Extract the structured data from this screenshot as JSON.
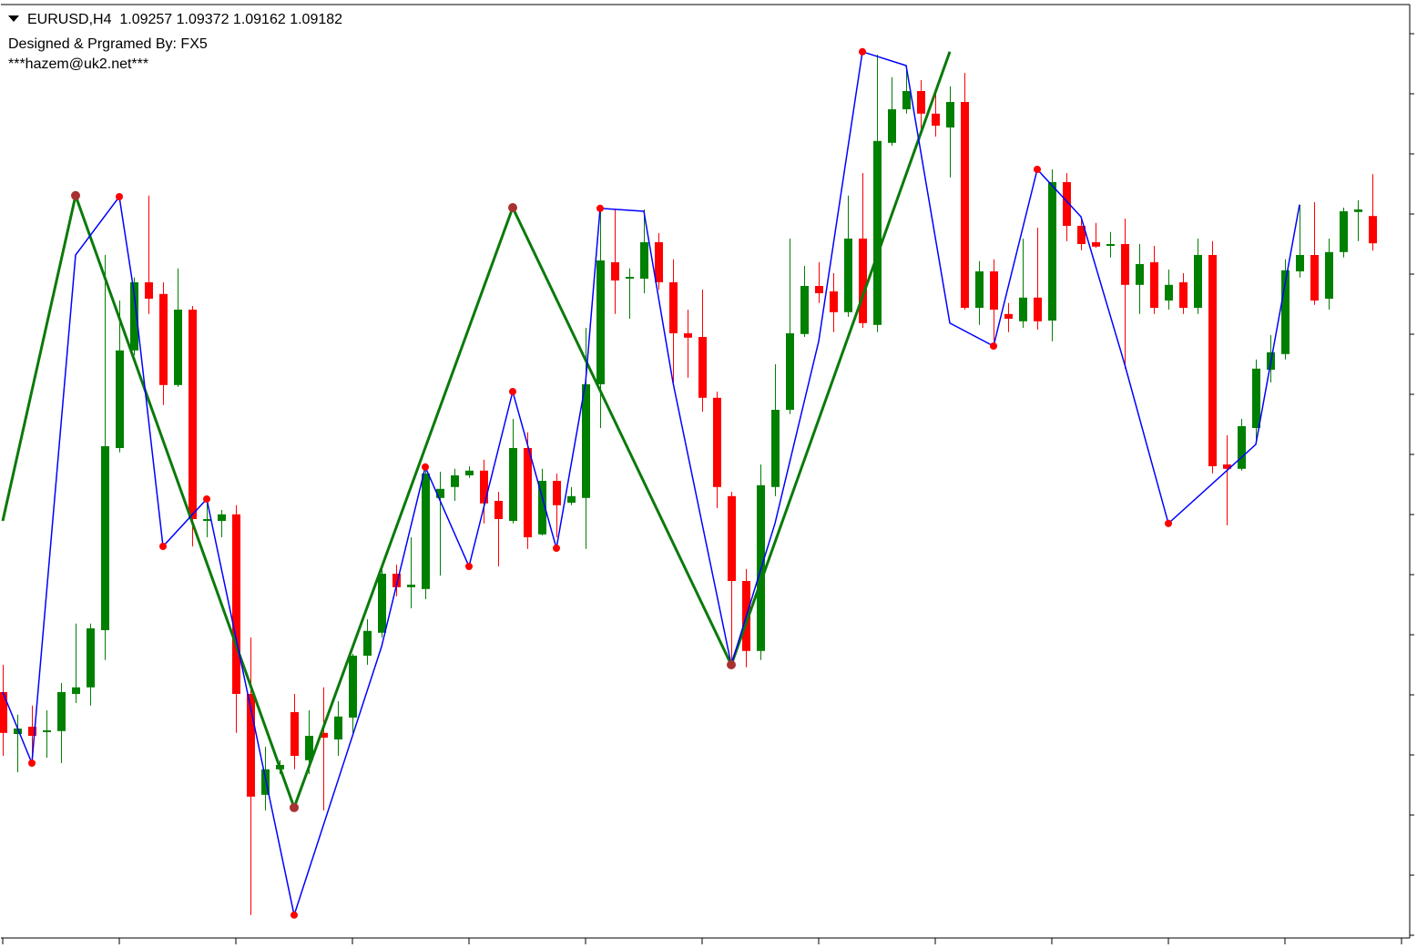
{
  "chart_data": {
    "type": "candlestick",
    "title": "EURUSD,H4  1.09257 1.09372 1.09162 1.09182",
    "annotations": [
      "Designed & Prgramed By: FX5",
      "***hazem@uk2.net***"
    ],
    "up_color": "#008000",
    "down_color": "#ff0000",
    "ylim": [
      1.07275,
      1.0985
    ],
    "open": [
      1.0795,
      1.07835,
      1.07855,
      1.0784,
      1.07843,
      1.07945,
      1.07963,
      1.0812,
      1.0862,
      1.08888,
      1.09075,
      1.09043,
      1.08793,
      1.09,
      1.0842,
      1.0842,
      1.08438,
      1.07945,
      1.07668,
      1.07738,
      1.07895,
      1.07763,
      1.07838,
      1.0782,
      1.0788,
      1.0805,
      1.08113,
      1.08275,
      1.08238,
      1.08233,
      1.08483,
      1.08513,
      1.08545,
      1.08558,
      1.08475,
      1.0842,
      1.0862,
      1.08383,
      1.0853,
      1.0847,
      1.08483,
      1.08795,
      1.0913,
      1.09085,
      1.09085,
      1.09185,
      1.09075,
      1.08935,
      1.08925,
      1.08758,
      1.08488,
      1.08255,
      1.08063,
      1.08513,
      1.08725,
      1.08933,
      1.09065,
      1.0905,
      1.08993,
      1.09195,
      1.08958,
      1.09458,
      1.0955,
      1.096,
      1.09538,
      1.095,
      1.0957,
      1.09005,
      1.09105,
      1.08988,
      1.08968,
      1.09033,
      1.0897,
      1.0935,
      1.0923,
      1.09185,
      1.09175,
      1.0918,
      1.09068,
      1.0913,
      1.09025,
      1.09075,
      1.09005,
      1.0915,
      1.08575,
      1.08563,
      1.08675,
      1.08835,
      1.08878,
      1.09105,
      1.0915,
      1.0903,
      1.09158,
      1.09268,
      1.09257
    ],
    "high": [
      1.08025,
      1.07888,
      1.07913,
      1.079,
      1.07975,
      1.08138,
      1.08138,
      1.0915,
      1.09025,
      1.09088,
      1.09313,
      1.09075,
      1.09113,
      1.0901,
      1.0848,
      1.0845,
      1.08463,
      1.081,
      1.078,
      1.07763,
      1.07945,
      1.079,
      1.07963,
      1.07925,
      1.08055,
      1.0815,
      1.08288,
      1.083,
      1.08375,
      1.08575,
      1.08555,
      1.08563,
      1.0857,
      1.08588,
      1.085,
      1.087,
      1.08663,
      1.08563,
      1.0855,
      1.08513,
      1.0895,
      1.09275,
      1.09275,
      1.09113,
      1.09275,
      1.0921,
      1.09138,
      1.09,
      1.09055,
      1.08775,
      1.085,
      1.08288,
      1.08575,
      1.0885,
      1.09195,
      1.0912,
      1.0913,
      1.091,
      1.09313,
      1.09375,
      1.097,
      1.09638,
      1.0967,
      1.0963,
      1.096,
      1.09613,
      1.0965,
      1.09133,
      1.09138,
      1.09018,
      1.09195,
      1.09225,
      1.09385,
      1.09375,
      1.09255,
      1.09238,
      1.09213,
      1.0925,
      1.0918,
      1.09175,
      1.0911,
      1.091,
      1.09195,
      1.09188,
      1.08655,
      1.087,
      1.08863,
      1.0893,
      1.09138,
      1.09288,
      1.09295,
      1.09195,
      1.0928,
      1.093,
      1.09372
    ],
    "low": [
      1.07775,
      1.0773,
      1.07755,
      1.0777,
      1.07755,
      1.0792,
      1.07913,
      1.08038,
      1.08608,
      1.08875,
      1.08988,
      1.08738,
      1.08788,
      1.0835,
      1.08375,
      1.08375,
      1.07838,
      1.07338,
      1.07625,
      1.07725,
      1.07738,
      1.07725,
      1.07625,
      1.07775,
      1.07838,
      1.08025,
      1.081,
      1.08213,
      1.0818,
      1.08205,
      1.0827,
      1.08475,
      1.08538,
      1.08413,
      1.08295,
      1.08413,
      1.08343,
      1.0838,
      1.08375,
      1.08463,
      1.08343,
      1.08675,
      1.08988,
      1.08975,
      1.09045,
      1.09055,
      1.088,
      1.08813,
      1.0872,
      1.08455,
      1.08018,
      1.08018,
      1.08038,
      1.08488,
      1.08713,
      1.08925,
      1.09018,
      1.08938,
      1.0898,
      1.0895,
      1.08938,
      1.0945,
      1.09538,
      1.0948,
      1.09475,
      1.09363,
      1.09,
      1.08958,
      1.08913,
      1.08938,
      1.0895,
      1.08945,
      1.08913,
      1.09188,
      1.09163,
      1.0917,
      1.09143,
      1.08838,
      1.08988,
      1.08988,
      1.09,
      1.08988,
      1.08988,
      1.0855,
      1.08408,
      1.08558,
      1.08638,
      1.088,
      1.08863,
      1.09088,
      1.09013,
      1.09,
      1.09143,
      1.09188,
      1.09162
    ],
    "close": [
      1.07838,
      1.0785,
      1.0783,
      1.07845,
      1.0795,
      1.07963,
      1.08125,
      1.08625,
      1.08888,
      1.09075,
      1.0903,
      1.08793,
      1.09,
      1.08425,
      1.08425,
      1.08438,
      1.07945,
      1.07663,
      1.07738,
      1.0775,
      1.07775,
      1.0783,
      1.07825,
      1.07883,
      1.0805,
      1.08118,
      1.08275,
      1.08238,
      1.08245,
      1.0855,
      1.08508,
      1.08545,
      1.08558,
      1.08468,
      1.08425,
      1.0862,
      1.08375,
      1.0853,
      1.08463,
      1.08488,
      1.08795,
      1.09135,
      1.0908,
      1.0909,
      1.09185,
      1.09075,
      1.08935,
      1.08923,
      1.08758,
      1.08513,
      1.08255,
      1.08063,
      1.08518,
      1.08725,
      1.08935,
      1.09065,
      1.09045,
      1.08993,
      1.09195,
      1.08963,
      1.09463,
      1.0955,
      1.096,
      1.09538,
      1.09505,
      1.0957,
      1.09005,
      1.09105,
      1.09,
      1.08975,
      1.09033,
      1.08968,
      1.0935,
      1.0923,
      1.0918,
      1.09173,
      1.0918,
      1.09068,
      1.09125,
      1.09005,
      1.09068,
      1.09005,
      1.0915,
      1.0857,
      1.08563,
      1.0868,
      1.08838,
      1.08883,
      1.09108,
      1.0915,
      1.09025,
      1.09158,
      1.0927,
      1.09275,
      1.09182
    ],
    "overlays": [
      {
        "type": "line",
        "color": "#0a7a0a",
        "width": 3,
        "x": [
          0,
          5,
          20,
          35,
          50,
          65
        ],
        "values": [
          1.0842,
          1.09313,
          1.07633,
          1.0928,
          1.08025,
          1.09708
        ]
      },
      {
        "type": "line",
        "color": "#0000ff",
        "width": 1.5,
        "x": [
          0,
          2,
          5,
          8,
          9,
          11,
          14,
          16,
          20,
          26,
          29,
          32,
          35,
          38,
          40,
          41,
          44,
          46,
          50,
          53,
          56,
          59,
          62,
          65,
          68,
          71,
          74,
          77,
          80,
          86,
          89
        ],
        "values": [
          1.0795,
          1.07755,
          1.0915,
          1.0931,
          1.0905,
          1.0835,
          1.0848,
          1.081,
          1.07338,
          1.08075,
          1.08568,
          1.08295,
          1.08775,
          1.08345,
          1.088,
          1.09278,
          1.0927,
          1.088,
          1.08025,
          1.08413,
          1.08913,
          1.09708,
          1.0967,
          1.08963,
          1.089,
          1.09385,
          1.09255,
          1.0885,
          1.08413,
          1.0863,
          1.09288
        ]
      },
      {
        "type": "scatter",
        "color": "#ff0000",
        "size": 4,
        "x": [
          2,
          8,
          11,
          14,
          20,
          29,
          32,
          35,
          38,
          41,
          50,
          59,
          68,
          71,
          80
        ],
        "values": [
          1.07755,
          1.0931,
          1.0835,
          1.0848,
          1.07338,
          1.08568,
          1.08295,
          1.08775,
          1.08345,
          1.09278,
          1.08025,
          1.09708,
          1.089,
          1.09385,
          1.08413
        ]
      },
      {
        "type": "scatter",
        "color": "#a83232",
        "size": 5,
        "x": [
          5,
          20,
          35,
          50
        ],
        "values": [
          1.09313,
          1.07633,
          1.0928,
          1.08025
        ]
      }
    ]
  }
}
